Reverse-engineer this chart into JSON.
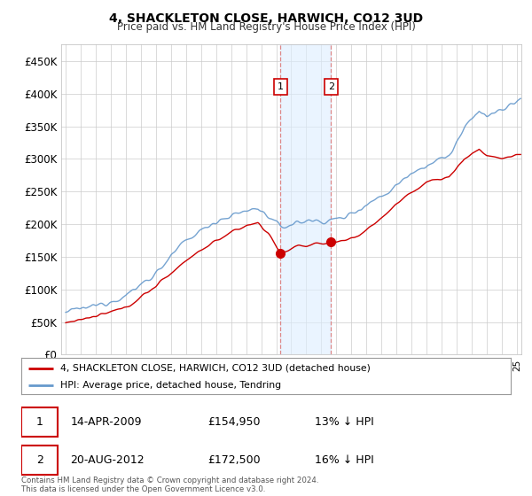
{
  "title": "4, SHACKLETON CLOSE, HARWICH, CO12 3UD",
  "subtitle": "Price paid vs. HM Land Registry's House Price Index (HPI)",
  "ytick_values": [
    0,
    50000,
    100000,
    150000,
    200000,
    250000,
    300000,
    350000,
    400000,
    450000
  ],
  "ylim": [
    0,
    475000
  ],
  "xlim_start": 1994.7,
  "xlim_end": 2025.3,
  "sale1_x": 2009.29,
  "sale1_y": 154950,
  "sale2_x": 2012.64,
  "sale2_y": 172500,
  "sale1_date": "14-APR-2009",
  "sale1_price": "£154,950",
  "sale1_hpi": "13% ↓ HPI",
  "sale2_date": "20-AUG-2012",
  "sale2_price": "£172,500",
  "sale2_hpi": "16% ↓ HPI",
  "shade_color": "#ddeeff",
  "shade_alpha": 0.6,
  "red_color": "#cc0000",
  "blue_color": "#6699cc",
  "legend1_label": "4, SHACKLETON CLOSE, HARWICH, CO12 3UD (detached house)",
  "legend2_label": "HPI: Average price, detached house, Tendring",
  "footnote": "Contains HM Land Registry data © Crown copyright and database right 2024.\nThis data is licensed under the Open Government Licence v3.0.",
  "background_color": "#ffffff",
  "grid_color": "#cccccc"
}
